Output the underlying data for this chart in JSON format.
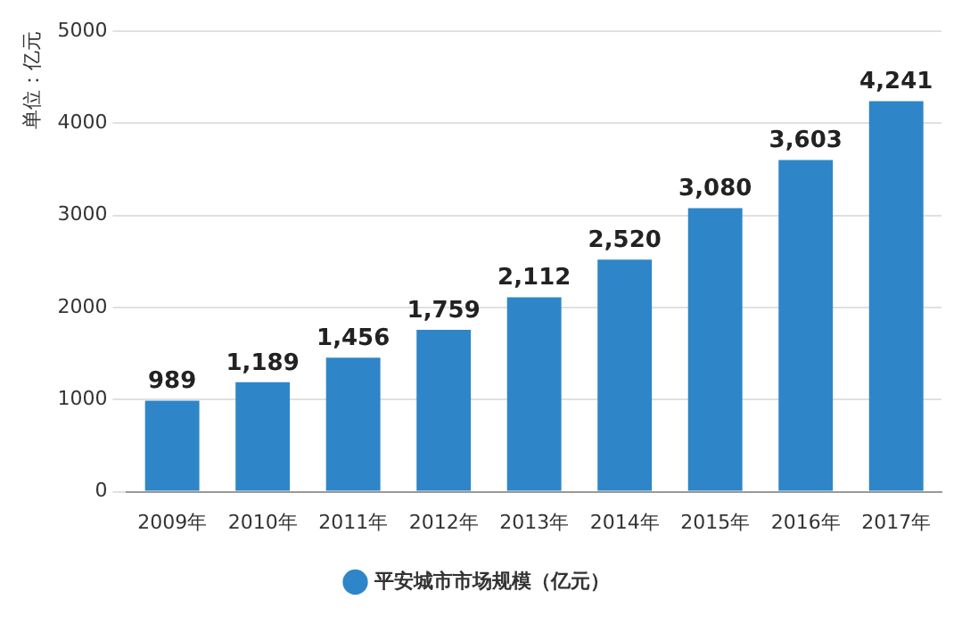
{
  "chart_data": {
    "type": "bar",
    "ylabel": "单位：亿元",
    "categories": [
      "2009年",
      "2010年",
      "2011年",
      "2012年",
      "2013年",
      "2014年",
      "2015年",
      "2016年",
      "2017年"
    ],
    "series": [
      {
        "name": "平安城市市场规模（亿元）",
        "color": "#2e86c8",
        "values": [
          989,
          1189,
          1456,
          1759,
          2112,
          2520,
          3080,
          3603,
          4241
        ],
        "value_labels": [
          "989",
          "1,189",
          "1,456",
          "1,759",
          "2,112",
          "2,520",
          "3,080",
          "3,603",
          "4,241"
        ]
      }
    ],
    "ylim": [
      0,
      5000
    ],
    "yticks": [
      0,
      1000,
      2000,
      3000,
      4000,
      5000
    ],
    "grid": "y",
    "legend": "bottom"
  }
}
